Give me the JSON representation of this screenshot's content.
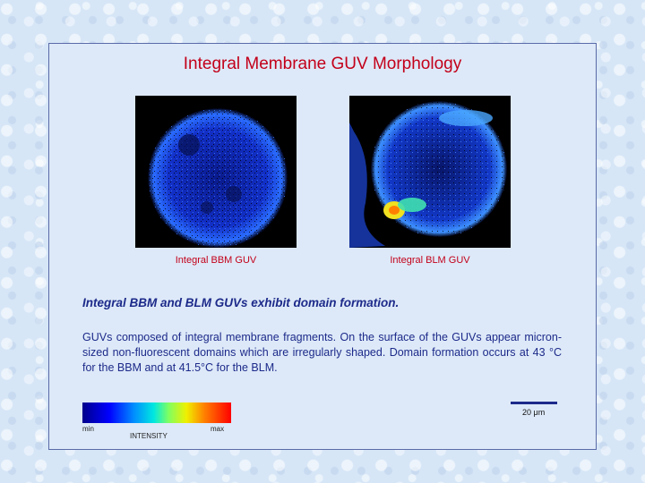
{
  "slide": {
    "title": "Integral Membrane GUV Morphology",
    "images": [
      {
        "caption": "Integral BBM GUV"
      },
      {
        "caption": "Integral BLM GUV"
      }
    ],
    "subheading": "Integral BBM and BLM GUVs exhibit domain formation.",
    "body": "GUVs composed of integral membrane fragments.  On the surface of the GUVs appear micron-sized non-fluorescent domains which are irregularly shaped. Domain formation occurs at 43 °C for the BBM and at 41.5°C for the BLM.",
    "scale_bar_label": "20 μm",
    "colorbar": {
      "min_label": "min",
      "max_label": "max",
      "axis_label": "INTENSITY"
    }
  },
  "colors": {
    "title": "#c3001a",
    "caption": "#c3001a",
    "text": "#1d2a8a",
    "border": "#5a6aa8"
  }
}
